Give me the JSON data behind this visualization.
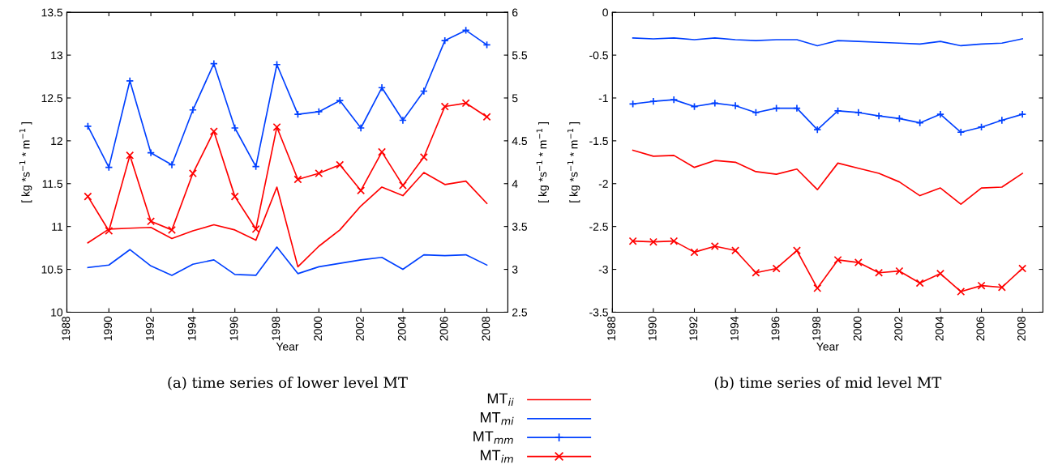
{
  "chart_data": [
    {
      "type": "line",
      "title": "(a) time series of lower level MT",
      "xlabel": "Year",
      "ylabel": "[ kg *s$^{−1}$ * m$^{−1}$ ]",
      "y2label": "[ kg *s$^{−1}$ * m$^{−1}$ ]",
      "x": [
        1989,
        1990,
        1991,
        1992,
        1993,
        1994,
        1995,
        1996,
        1997,
        1998,
        1999,
        2000,
        2001,
        2002,
        2003,
        2004,
        2005,
        2006,
        2007,
        2008
      ],
      "xlim": [
        1988,
        2009
      ],
      "xticks": [
        1988,
        1990,
        1992,
        1994,
        1996,
        1998,
        2000,
        2002,
        2004,
        2006,
        2008
      ],
      "ylim": [
        10,
        13.5
      ],
      "yticks": [
        10,
        10.5,
        11,
        11.5,
        12,
        12.5,
        13,
        13.5
      ],
      "y2lim": [
        2.5,
        6
      ],
      "y2ticks": [
        2.5,
        3,
        3.5,
        4,
        4.5,
        5,
        5.5,
        6
      ],
      "grid": false,
      "legend": "bottom",
      "series": [
        {
          "name": "MT$_{ii}$",
          "color": "#ff0000",
          "axis": "y2",
          "marker": "none",
          "values": [
            3.31,
            3.47,
            3.48,
            3.49,
            3.36,
            3.45,
            3.52,
            3.46,
            3.34,
            3.96,
            3.03,
            3.27,
            3.46,
            3.74,
            3.96,
            3.86,
            4.13,
            3.99,
            4.03,
            3.77
          ]
        },
        {
          "name": "MT$_{mi}$",
          "color": "#0040ff",
          "axis": "y2",
          "marker": "none",
          "values": [
            3.02,
            3.05,
            3.23,
            3.04,
            2.93,
            3.06,
            3.11,
            2.94,
            2.93,
            3.26,
            2.95,
            3.03,
            3.07,
            3.11,
            3.14,
            3.0,
            3.17,
            3.16,
            3.17,
            3.05
          ]
        },
        {
          "name": "MT$_{mm}$",
          "color": "#0040ff",
          "axis": "y",
          "marker": "cross",
          "values": [
            12.17,
            11.69,
            12.7,
            11.86,
            11.72,
            12.36,
            12.9,
            12.15,
            11.7,
            12.89,
            12.31,
            12.34,
            12.47,
            12.15,
            12.62,
            12.24,
            12.58,
            13.17,
            13.29,
            13.12
          ]
        },
        {
          "name": "MT$_{im}$",
          "color": "#ff0000",
          "axis": "y",
          "marker": "x",
          "values": [
            11.35,
            10.95,
            11.83,
            11.06,
            10.96,
            11.62,
            12.11,
            11.35,
            10.97,
            12.16,
            11.55,
            11.62,
            11.72,
            11.42,
            11.87,
            11.48,
            11.81,
            12.4,
            12.44,
            12.28
          ]
        }
      ]
    },
    {
      "type": "line",
      "title": "(b) time series of mid level MT",
      "xlabel": "Year",
      "ylabel": "[ kg *s$^{−1}$ * m$^{−1}$ ]",
      "x": [
        1989,
        1990,
        1991,
        1992,
        1993,
        1994,
        1995,
        1996,
        1997,
        1998,
        1999,
        2000,
        2001,
        2002,
        2003,
        2004,
        2005,
        2006,
        2007,
        2008
      ],
      "xlim": [
        1988,
        2009
      ],
      "xticks": [
        1988,
        1990,
        1992,
        1994,
        1996,
        1998,
        2000,
        2002,
        2004,
        2006,
        2008
      ],
      "ylim": [
        -3.5,
        0
      ],
      "yticks": [
        {
          "value": -3.5,
          "label": "-3.5"
        },
        {
          "value": -3,
          "label": "-3"
        },
        {
          "value": -2.5,
          "label": "-2.5"
        },
        {
          "value": -2,
          "label": "-2"
        },
        {
          "value": -1.5,
          "label": "-1.5"
        },
        {
          "value": -1,
          "label": "-1"
        },
        {
          "value": -0.5,
          "label": "-0.5"
        },
        0
      ],
      "grid": false,
      "series": [
        {
          "color": "#ff0000",
          "marker": "none",
          "values": [
            -1.61,
            -1.68,
            -1.67,
            -1.81,
            -1.73,
            -1.75,
            -1.86,
            -1.89,
            -1.83,
            -2.07,
            -1.76,
            -1.82,
            -1.88,
            -1.98,
            -2.14,
            -2.05,
            -2.24,
            -2.05,
            -2.04,
            -1.88
          ]
        },
        {
          "color": "#0040ff",
          "marker": "none",
          "values": [
            -0.3,
            -0.31,
            -0.3,
            -0.32,
            -0.3,
            -0.32,
            -0.33,
            -0.32,
            -0.32,
            -0.39,
            -0.33,
            -0.34,
            -0.35,
            -0.36,
            -0.37,
            -0.34,
            -0.39,
            -0.37,
            -0.36,
            -0.31
          ]
        },
        {
          "color": "#0040ff",
          "marker": "cross",
          "values": [
            -1.07,
            -1.04,
            -1.02,
            -1.1,
            -1.06,
            -1.09,
            -1.17,
            -1.12,
            -1.12,
            -1.37,
            -1.15,
            -1.17,
            -1.21,
            -1.24,
            -1.29,
            -1.19,
            -1.4,
            -1.34,
            -1.26,
            -1.19
          ]
        },
        {
          "color": "#ff0000",
          "marker": "x",
          "values": [
            -2.67,
            -2.68,
            -2.67,
            -2.8,
            -2.73,
            -2.78,
            -3.04,
            -2.99,
            -2.78,
            -3.22,
            -2.89,
            -2.92,
            -3.04,
            -3.02,
            -3.16,
            -3.05,
            -3.26,
            -3.19,
            -3.21,
            -2.99
          ]
        }
      ]
    }
  ]
}
